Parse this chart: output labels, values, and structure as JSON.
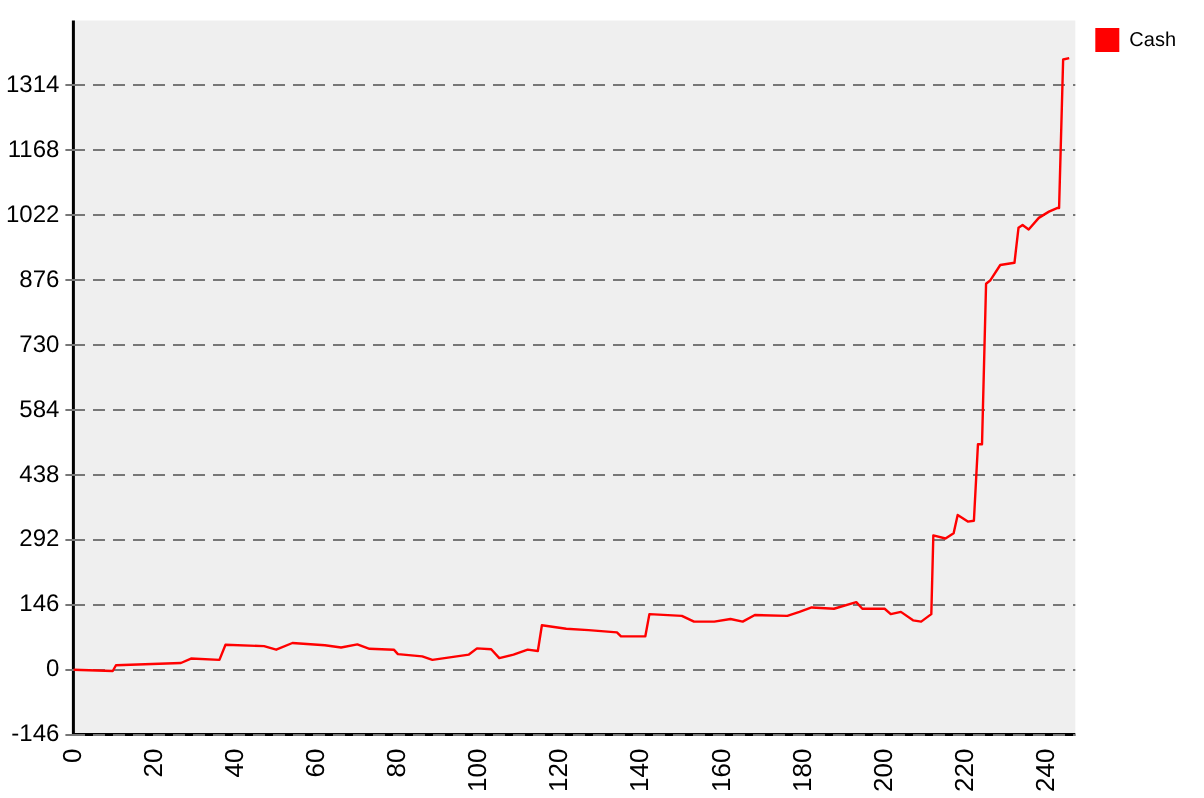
{
  "chart_data": {
    "type": "line",
    "xlim": [
      0,
      247
    ],
    "xticks": [
      0,
      20,
      40,
      60,
      80,
      100,
      120,
      140,
      160,
      180,
      200,
      220,
      240
    ],
    "ylim": [
      -146,
      1460
    ],
    "yticks": [
      -146,
      0,
      146,
      292,
      438,
      584,
      730,
      876,
      1022,
      1168,
      1314
    ],
    "grid": "y",
    "legend": "top right",
    "marker": "none",
    "line_style": "solid",
    "series": [
      {
        "name": "Cash",
        "color": "#ff0000",
        "x": [
          0,
          9.7,
          10.5,
          26.5,
          29,
          36,
          37.5,
          47,
          50,
          54,
          62,
          66,
          70,
          73,
          79,
          80,
          86,
          88.5,
          97.5,
          99.5,
          103,
          105,
          108.5,
          112,
          114.5,
          115.5,
          121.5,
          127,
          134,
          135,
          141,
          142,
          150,
          153,
          158,
          162,
          165,
          168,
          176,
          179,
          182,
          187.5,
          193,
          194.5,
          200,
          201.5,
          204,
          207,
          209,
          211.5,
          212,
          215,
          217,
          218,
          220.5,
          222,
          223,
          224,
          225,
          226,
          228.5,
          232,
          233,
          234,
          235.5,
          238,
          240.5,
          242.5,
          243,
          244,
          245.5
        ],
        "values": [
          0,
          -3,
          10,
          15,
          25,
          22,
          56,
          53,
          45,
          60,
          55,
          50,
          57,
          47,
          45,
          35,
          30,
          22,
          34,
          48,
          46,
          26,
          34,
          45,
          42,
          100,
          92,
          89,
          84,
          75,
          75,
          125,
          121,
          108,
          108,
          114,
          108,
          123,
          121,
          130,
          140,
          137,
          152,
          137,
          137,
          125,
          130,
          111,
          108,
          125,
          302,
          295,
          307,
          348,
          333,
          335,
          507,
          507,
          868,
          875,
          910,
          915,
          994,
          1000,
          990,
          1016,
          1030,
          1038,
          1038,
          1372,
          1375
        ]
      }
    ]
  }
}
